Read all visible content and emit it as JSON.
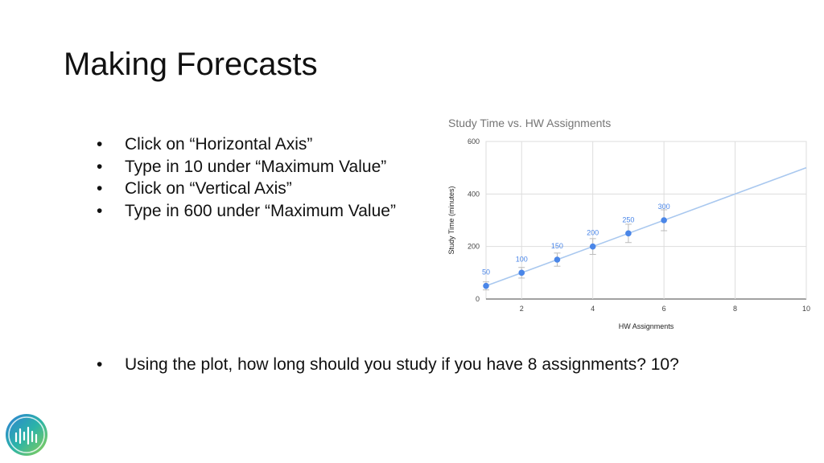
{
  "slide": {
    "title": "Making Forecasts",
    "bullets": [
      "Click on “Horizontal Axis”",
      "Type in 10 under “Maximum Value”",
      "Click on “Vertical Axis”",
      "Type in 600 under “Maximum Value”"
    ],
    "question": "Using the plot, how long should you study if you have 8 assignments? 10?"
  },
  "logo": {
    "icon": "sound-wave-logo-icon"
  },
  "chart_data": {
    "type": "scatter",
    "title": "Study Time vs. HW Assignments",
    "xlabel": "HW Assignments",
    "ylabel": "Study Time (minutes)",
    "xlim": [
      1,
      10
    ],
    "ylim": [
      0,
      600
    ],
    "xticks": [
      2,
      4,
      6,
      8,
      10
    ],
    "yticks": [
      0,
      200,
      400,
      600
    ],
    "grid": true,
    "series": [
      {
        "x": [
          1,
          2,
          3,
          4,
          5,
          6
        ],
        "y": [
          50,
          100,
          150,
          200,
          250,
          300
        ],
        "labels": [
          "50",
          "100",
          "150",
          "200",
          "250",
          "300"
        ],
        "error_bars": true,
        "color": "#4a86e8"
      }
    ],
    "trendline": {
      "slope": 50,
      "intercept": 0,
      "color": "#a9c8ef"
    }
  }
}
